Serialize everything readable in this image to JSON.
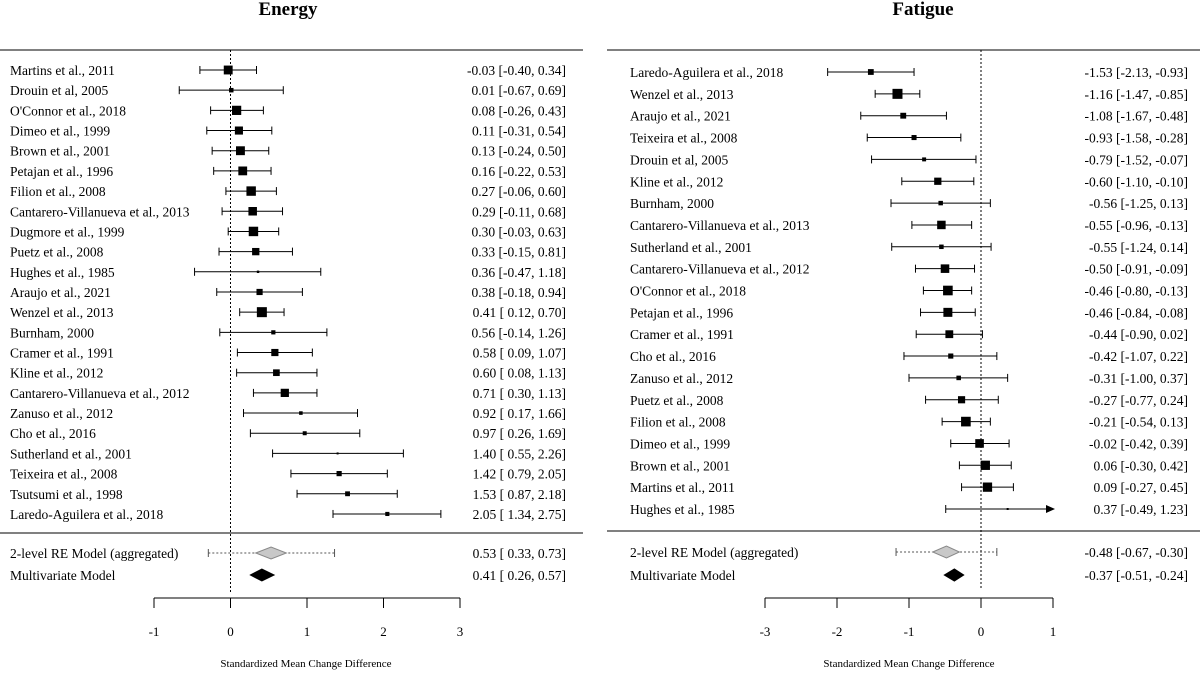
{
  "chart_data": [
    {
      "type": "forest",
      "title": "Energy",
      "xlabel": "Standardized Mean Change Difference",
      "xlim": [
        -1,
        3
      ],
      "ticks": [
        "-1",
        "0",
        "1",
        "2",
        "3"
      ],
      "studies": [
        {
          "label": "Martins et al., 2011",
          "est": -0.03,
          "lo": -0.4,
          "hi": 0.34,
          "text": "-0.03 [-0.40, 0.34]"
        },
        {
          "label": "Drouin et al, 2005",
          "est": 0.01,
          "lo": -0.67,
          "hi": 0.69,
          "text": "0.01 [-0.67, 0.69]"
        },
        {
          "label": "O'Connor et al., 2018",
          "est": 0.08,
          "lo": -0.26,
          "hi": 0.43,
          "text": "0.08 [-0.26, 0.43]"
        },
        {
          "label": "Dimeo et al., 1999",
          "est": 0.11,
          "lo": -0.31,
          "hi": 0.54,
          "text": "0.11 [-0.31, 0.54]"
        },
        {
          "label": "Brown et al., 2001",
          "est": 0.13,
          "lo": -0.24,
          "hi": 0.5,
          "text": "0.13 [-0.24, 0.50]"
        },
        {
          "label": "Petajan et al., 1996",
          "est": 0.16,
          "lo": -0.22,
          "hi": 0.53,
          "text": "0.16 [-0.22, 0.53]"
        },
        {
          "label": "Filion et al., 2008",
          "est": 0.27,
          "lo": -0.06,
          "hi": 0.6,
          "text": "0.27 [-0.06, 0.60]"
        },
        {
          "label": "Cantarero-Villanueva et al., 2013",
          "est": 0.29,
          "lo": -0.11,
          "hi": 0.68,
          "text": "0.29 [-0.11, 0.68]"
        },
        {
          "label": "Dugmore et al., 1999",
          "est": 0.3,
          "lo": -0.03,
          "hi": 0.63,
          "text": "0.30 [-0.03, 0.63]"
        },
        {
          "label": "Puetz et al., 2008",
          "est": 0.33,
          "lo": -0.15,
          "hi": 0.81,
          "text": "0.33 [-0.15, 0.81]"
        },
        {
          "label": "Hughes et al., 1985",
          "est": 0.36,
          "lo": -0.47,
          "hi": 1.18,
          "text": "0.36 [-0.47, 1.18]"
        },
        {
          "label": "Araujo et al., 2021",
          "est": 0.38,
          "lo": -0.18,
          "hi": 0.94,
          "text": "0.38 [-0.18, 0.94]"
        },
        {
          "label": "Wenzel et al., 2013",
          "est": 0.41,
          "lo": 0.12,
          "hi": 0.7,
          "text": "0.41 [ 0.12, 0.70]"
        },
        {
          "label": "Burnham, 2000",
          "est": 0.56,
          "lo": -0.14,
          "hi": 1.26,
          "text": "0.56 [-0.14, 1.26]"
        },
        {
          "label": "Cramer et al., 1991",
          "est": 0.58,
          "lo": 0.09,
          "hi": 1.07,
          "text": "0.58 [ 0.09, 1.07]"
        },
        {
          "label": "Kline et al., 2012",
          "est": 0.6,
          "lo": 0.08,
          "hi": 1.13,
          "text": "0.60 [ 0.08, 1.13]"
        },
        {
          "label": "Cantarero-Villanueva et al., 2012",
          "est": 0.71,
          "lo": 0.3,
          "hi": 1.13,
          "text": "0.71 [ 0.30, 1.13]"
        },
        {
          "label": "Zanuso et al., 2012",
          "est": 0.92,
          "lo": 0.17,
          "hi": 1.66,
          "text": "0.92 [ 0.17, 1.66]"
        },
        {
          "label": "Cho et al., 2016",
          "est": 0.97,
          "lo": 0.26,
          "hi": 1.69,
          "text": "0.97 [ 0.26, 1.69]"
        },
        {
          "label": "Sutherland et al., 2001",
          "est": 1.4,
          "lo": 0.55,
          "hi": 2.26,
          "text": "1.40 [ 0.55, 2.26]"
        },
        {
          "label": "Teixeira et al., 2008",
          "est": 1.42,
          "lo": 0.79,
          "hi": 2.05,
          "text": "1.42 [ 0.79, 2.05]"
        },
        {
          "label": "Tsutsumi et al., 1998",
          "est": 1.53,
          "lo": 0.87,
          "hi": 2.18,
          "text": "1.53 [ 0.87, 2.18]"
        },
        {
          "label": "Laredo-Aguilera et al., 2018",
          "est": 2.05,
          "lo": 1.34,
          "hi": 2.75,
          "text": "2.05 [ 1.34, 2.75]"
        }
      ],
      "summaries": [
        {
          "label": "2-level RE Model (aggregated)",
          "est": 0.53,
          "lo": 0.33,
          "hi": 0.73,
          "pi_lo": -0.29,
          "pi_hi": 1.36,
          "text": "0.53 [ 0.33, 0.73]",
          "color": "#c8c8c8"
        },
        {
          "label": "Multivariate Model",
          "est": 0.41,
          "lo": 0.26,
          "hi": 0.57,
          "text": "0.41 [ 0.26, 0.57]",
          "color": "#000000"
        }
      ]
    },
    {
      "type": "forest",
      "title": "Fatigue",
      "xlabel": "Standardized Mean Change Difference",
      "xlim": [
        -3,
        1
      ],
      "ticks": [
        "-3",
        "-2",
        "-1",
        "0",
        "1"
      ],
      "studies": [
        {
          "label": "Laredo-Aguilera et al., 2018",
          "est": -1.53,
          "lo": -2.13,
          "hi": -0.93,
          "text": "-1.53 [-2.13, -0.93]"
        },
        {
          "label": "Wenzel et al., 2013",
          "est": -1.16,
          "lo": -1.47,
          "hi": -0.85,
          "text": "-1.16 [-1.47, -0.85]"
        },
        {
          "label": "Araujo et al., 2021",
          "est": -1.08,
          "lo": -1.67,
          "hi": -0.48,
          "text": "-1.08 [-1.67, -0.48]"
        },
        {
          "label": "Teixeira et al., 2008",
          "est": -0.93,
          "lo": -1.58,
          "hi": -0.28,
          "text": "-0.93 [-1.58, -0.28]"
        },
        {
          "label": "Drouin et al, 2005",
          "est": -0.79,
          "lo": -1.52,
          "hi": -0.07,
          "text": "-0.79 [-1.52, -0.07]"
        },
        {
          "label": "Kline et al., 2012",
          "est": -0.6,
          "lo": -1.1,
          "hi": -0.1,
          "text": "-0.60 [-1.10, -0.10]"
        },
        {
          "label": "Burnham, 2000",
          "est": -0.56,
          "lo": -1.25,
          "hi": 0.13,
          "text": "-0.56 [-1.25, 0.13]"
        },
        {
          "label": "Cantarero-Villanueva et al., 2013",
          "est": -0.55,
          "lo": -0.96,
          "hi": -0.13,
          "text": "-0.55 [-0.96, -0.13]"
        },
        {
          "label": "Sutherland et al., 2001",
          "est": -0.55,
          "lo": -1.24,
          "hi": 0.14,
          "text": "-0.55 [-1.24, 0.14]"
        },
        {
          "label": "Cantarero-Villanueva et al., 2012",
          "est": -0.5,
          "lo": -0.91,
          "hi": -0.09,
          "text": "-0.50 [-0.91, -0.09]"
        },
        {
          "label": "O'Connor et al., 2018",
          "est": -0.46,
          "lo": -0.8,
          "hi": -0.13,
          "text": "-0.46 [-0.80, -0.13]"
        },
        {
          "label": "Petajan et al., 1996",
          "est": -0.46,
          "lo": -0.84,
          "hi": -0.08,
          "text": "-0.46 [-0.84, -0.08]"
        },
        {
          "label": "Cramer et al., 1991",
          "est": -0.44,
          "lo": -0.9,
          "hi": 0.02,
          "text": "-0.44 [-0.90, 0.02]"
        },
        {
          "label": "Cho et al., 2016",
          "est": -0.42,
          "lo": -1.07,
          "hi": 0.22,
          "text": "-0.42 [-1.07, 0.22]"
        },
        {
          "label": "Zanuso et al., 2012",
          "est": -0.31,
          "lo": -1.0,
          "hi": 0.37,
          "text": "-0.31 [-1.00, 0.37]"
        },
        {
          "label": "Puetz et al., 2008",
          "est": -0.27,
          "lo": -0.77,
          "hi": 0.24,
          "text": "-0.27 [-0.77, 0.24]"
        },
        {
          "label": "Filion et al., 2008",
          "est": -0.21,
          "lo": -0.54,
          "hi": 0.13,
          "text": "-0.21 [-0.54, 0.13]"
        },
        {
          "label": "Dimeo et al., 1999",
          "est": -0.02,
          "lo": -0.42,
          "hi": 0.39,
          "text": "-0.02 [-0.42, 0.39]"
        },
        {
          "label": "Brown et al., 2001",
          "est": 0.06,
          "lo": -0.3,
          "hi": 0.42,
          "text": "0.06 [-0.30, 0.42]"
        },
        {
          "label": "Martins et al., 2011",
          "est": 0.09,
          "lo": -0.27,
          "hi": 0.45,
          "text": "0.09 [-0.27, 0.45]"
        },
        {
          "label": "Hughes et al., 1985",
          "est": 0.37,
          "lo": -0.49,
          "hi": 1.23,
          "text": "0.37 [-0.49, 1.23]"
        }
      ],
      "summaries": [
        {
          "label": "2-level RE Model (aggregated)",
          "est": -0.48,
          "lo": -0.67,
          "hi": -0.3,
          "pi_lo": -1.18,
          "pi_hi": 0.22,
          "text": "-0.48 [-0.67, -0.30]",
          "color": "#c8c8c8"
        },
        {
          "label": "Multivariate Model",
          "est": -0.37,
          "lo": -0.51,
          "hi": -0.24,
          "text": "-0.37 [-0.51, -0.24]",
          "color": "#000000"
        }
      ]
    }
  ]
}
